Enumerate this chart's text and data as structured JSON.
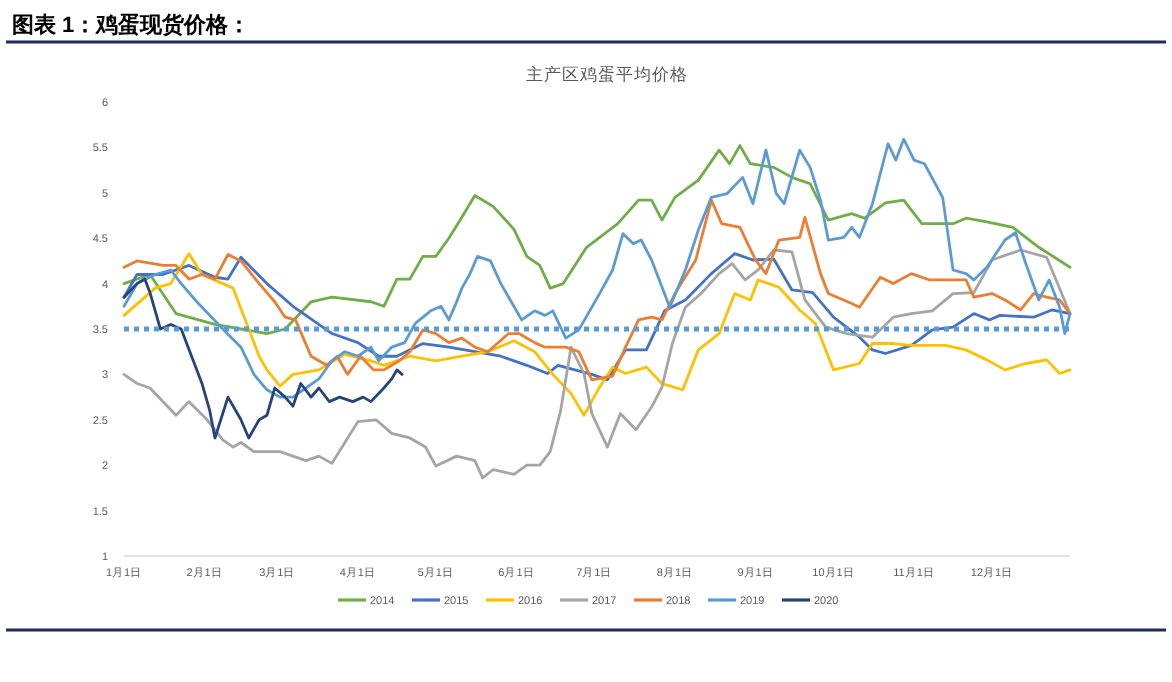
{
  "chart_data": {
    "type": "line",
    "title": "图表 1：鸡蛋现货价格：",
    "subtitle": "主产区鸡蛋平均价格",
    "xlim": [
      "--01-01",
      "--12-31"
    ],
    "xticks": [
      {
        "value": "--01-01",
        "label": "1月1日"
      },
      {
        "value": "--02-01",
        "label": "2月1日"
      },
      {
        "value": "--03-01",
        "label": "3月1日"
      },
      {
        "value": "--04-01",
        "label": "4月1日"
      },
      {
        "value": "--05-01",
        "label": "5月1日"
      },
      {
        "value": "--06-01",
        "label": "6月1日"
      },
      {
        "value": "--07-01",
        "label": "7月1日"
      },
      {
        "value": "--08-01",
        "label": "8月1日"
      },
      {
        "value": "--09-01",
        "label": "9月1日"
      },
      {
        "value": "--10-01",
        "label": "10月1日"
      },
      {
        "value": "--11-01",
        "label": "11月1日"
      },
      {
        "value": "--12-01",
        "label": "12月1日"
      }
    ],
    "ylim": [
      1,
      6
    ],
    "yticks": [
      1,
      1.5,
      2,
      2.5,
      3,
      3.5,
      4,
      4.5,
      5,
      5.5,
      6
    ],
    "grid": false,
    "legend": "bottom",
    "marker": "none",
    "line_style": "solid",
    "ref_lines": [
      {
        "axis": "y",
        "value": 3.5,
        "color": "#5b9bd5",
        "line_style": "dotted"
      }
    ],
    "series": [
      {
        "name": "2014",
        "color": "#70ad47",
        "x": [
          "--01-01",
          "--01-11",
          "--01-21",
          "--02-05",
          "--02-15",
          "--02-25",
          "--03-04",
          "--03-14",
          "--03-22",
          "--04-06",
          "--04-11",
          "--04-16",
          "--04-21",
          "--04-26",
          "--05-01",
          "--05-06",
          "--05-11",
          "--05-16",
          "--05-23",
          "--05-31",
          "--06-05",
          "--06-10",
          "--06-14",
          "--06-19",
          "--06-28",
          "--07-10",
          "--07-18",
          "--07-23",
          "--07-27",
          "--08-01",
          "--08-10",
          "--08-18",
          "--08-22",
          "--08-26",
          "--08-30",
          "--09-08",
          "--09-15",
          "--09-22",
          "--09-29",
          "--10-08",
          "--10-13",
          "--10-21",
          "--10-28",
          "--11-04",
          "--11-16",
          "--11-21",
          "--11-29",
          "--12-09",
          "--12-19",
          "--12-31"
        ],
        "values": [
          4.0,
          4.1,
          3.67,
          3.55,
          3.5,
          3.45,
          3.5,
          3.8,
          3.85,
          3.8,
          3.75,
          4.05,
          4.05,
          4.3,
          4.3,
          4.5,
          4.73,
          4.97,
          4.85,
          4.6,
          4.3,
          4.2,
          3.95,
          4.0,
          4.4,
          4.66,
          4.92,
          4.92,
          4.7,
          4.95,
          5.14,
          5.47,
          5.32,
          5.52,
          5.32,
          5.28,
          5.17,
          5.1,
          4.7,
          4.77,
          4.72,
          4.89,
          4.92,
          4.66,
          4.66,
          4.72,
          4.68,
          4.62,
          4.4,
          4.18
        ]
      },
      {
        "name": "2015",
        "color": "#4472c4",
        "x": [
          "--01-01",
          "--01-06",
          "--01-16",
          "--01-26",
          "--02-05",
          "--02-10",
          "--02-15",
          "--02-25",
          "--03-07",
          "--03-12",
          "--03-22",
          "--04-01",
          "--04-09",
          "--04-16",
          "--04-26",
          "--05-06",
          "--05-16",
          "--05-26",
          "--06-05",
          "--06-13",
          "--06-17",
          "--06-30",
          "--07-06",
          "--07-13",
          "--07-21",
          "--07-28",
          "--08-05",
          "--08-15",
          "--08-24",
          "--08-31",
          "--09-08",
          "--09-15",
          "--09-23",
          "--10-01",
          "--10-11",
          "--10-16",
          "--10-21",
          "--10-31",
          "--11-08",
          "--11-16",
          "--11-24",
          "--11-30",
          "--12-04",
          "--12-17",
          "--12-24",
          "--12-31"
        ],
        "values": [
          3.85,
          4.1,
          4.1,
          4.2,
          4.07,
          4.05,
          4.29,
          4.0,
          3.75,
          3.65,
          3.45,
          3.35,
          3.2,
          3.2,
          3.34,
          3.3,
          3.25,
          3.2,
          3.1,
          3.01,
          3.1,
          3.0,
          2.94,
          3.27,
          3.27,
          3.7,
          3.82,
          4.11,
          4.33,
          4.26,
          4.27,
          3.93,
          3.9,
          3.63,
          3.41,
          3.27,
          3.23,
          3.32,
          3.49,
          3.52,
          3.67,
          3.6,
          3.65,
          3.63,
          3.71,
          3.67
        ]
      },
      {
        "name": "2016",
        "color": "#ffc000",
        "x": [
          "--01-01",
          "--01-13",
          "--01-19",
          "--01-26",
          "--01-31",
          "--02-08",
          "--02-12",
          "--02-18",
          "--02-22",
          "--02-25",
          "--03-02",
          "--03-07",
          "--03-17",
          "--03-27",
          "--04-06",
          "--04-11",
          "--04-21",
          "--05-01",
          "--05-11",
          "--05-21",
          "--05-31",
          "--06-08",
          "--06-15",
          "--06-22",
          "--06-27",
          "--07-03",
          "--07-08",
          "--07-13",
          "--07-21",
          "--07-27",
          "--08-04",
          "--08-10",
          "--08-18",
          "--08-24",
          "--08-30",
          "--09-02",
          "--09-10",
          "--09-18",
          "--09-24",
          "--10-01",
          "--10-11",
          "--10-16",
          "--10-24",
          "--10-31",
          "--11-13",
          "--11-21",
          "--11-29",
          "--12-06",
          "--12-14",
          "--12-22",
          "--12-27",
          "--12-31"
        ],
        "values": [
          3.65,
          3.95,
          4.0,
          4.33,
          4.1,
          4.0,
          3.95,
          3.5,
          3.2,
          3.05,
          2.87,
          3.0,
          3.05,
          3.22,
          3.15,
          3.1,
          3.2,
          3.15,
          3.2,
          3.25,
          3.37,
          3.25,
          3.0,
          2.79,
          2.55,
          2.86,
          3.08,
          3.01,
          3.08,
          2.9,
          2.83,
          3.27,
          3.45,
          3.89,
          3.82,
          4.04,
          3.96,
          3.71,
          3.56,
          3.05,
          3.12,
          3.34,
          3.34,
          3.32,
          3.32,
          3.27,
          3.16,
          3.05,
          3.12,
          3.16,
          3.01,
          3.05
        ]
      },
      {
        "name": "2017",
        "color": "#a5a5a5",
        "x": [
          "--01-01",
          "--01-06",
          "--01-11",
          "--01-21",
          "--01-26",
          "--02-02",
          "--02-08",
          "--02-12",
          "--02-15",
          "--02-20",
          "--03-02",
          "--03-07",
          "--03-12",
          "--03-17",
          "--03-22",
          "--03-27",
          "--04-01",
          "--04-08",
          "--04-14",
          "--04-21",
          "--04-27",
          "--05-01",
          "--05-09",
          "--05-16",
          "--05-19",
          "--05-23",
          "--05-31",
          "--06-05",
          "--06-10",
          "--06-14",
          "--06-18",
          "--06-22",
          "--06-27",
          "--06-30",
          "--07-06",
          "--07-11",
          "--07-17",
          "--07-23",
          "--07-27",
          "--07-31",
          "--08-05",
          "--08-11",
          "--08-18",
          "--08-23",
          "--08-28",
          "--09-02",
          "--09-08",
          "--09-15",
          "--09-20",
          "--09-28",
          "--10-06",
          "--10-16",
          "--10-24",
          "--10-31",
          "--11-08",
          "--11-16",
          "--11-24",
          "--12-01",
          "--12-12",
          "--12-22",
          "--12-31"
        ],
        "values": [
          3.0,
          2.9,
          2.85,
          2.55,
          2.7,
          2.5,
          2.28,
          2.2,
          2.25,
          2.15,
          2.15,
          2.1,
          2.05,
          2.1,
          2.02,
          2.25,
          2.48,
          2.5,
          2.35,
          2.3,
          2.2,
          1.99,
          2.1,
          2.05,
          1.86,
          1.95,
          1.9,
          2.0,
          2.0,
          2.15,
          2.6,
          3.3,
          3.01,
          2.57,
          2.2,
          2.57,
          2.39,
          2.64,
          2.86,
          3.34,
          3.74,
          3.89,
          4.11,
          4.22,
          4.04,
          4.15,
          4.37,
          4.35,
          3.82,
          3.52,
          3.45,
          3.41,
          3.63,
          3.67,
          3.7,
          3.89,
          3.9,
          4.26,
          4.37,
          4.29,
          3.67
        ]
      },
      {
        "name": "2018",
        "color": "#ed7d31",
        "x": [
          "--01-01",
          "--01-06",
          "--01-16",
          "--01-21",
          "--01-26",
          "--01-31",
          "--02-05",
          "--02-10",
          "--02-15",
          "--02-22",
          "--02-28",
          "--03-04",
          "--03-08",
          "--03-14",
          "--03-20",
          "--03-24",
          "--03-28",
          "--04-02",
          "--04-07",
          "--04-11",
          "--04-17",
          "--04-21",
          "--04-26",
          "--05-01",
          "--05-06",
          "--05-11",
          "--05-16",
          "--05-21",
          "--05-29",
          "--06-02",
          "--06-08",
          "--06-12",
          "--06-20",
          "--06-25",
          "--06-30",
          "--07-08",
          "--07-13",
          "--07-18",
          "--07-23",
          "--07-27",
          "--08-01",
          "--08-09",
          "--08-15",
          "--08-19",
          "--08-26",
          "--09-01",
          "--09-05",
          "--09-10",
          "--09-18",
          "--09-20",
          "--09-26",
          "--09-29",
          "--10-08",
          "--10-11",
          "--10-19",
          "--10-24",
          "--10-31",
          "--11-07",
          "--11-21",
          "--11-24",
          "--12-01",
          "--12-06",
          "--12-12",
          "--12-17",
          "--12-22",
          "--12-27",
          "--12-31"
        ],
        "values": [
          4.18,
          4.25,
          4.2,
          4.2,
          4.05,
          4.1,
          4.05,
          4.32,
          4.25,
          4.0,
          3.8,
          3.63,
          3.6,
          3.2,
          3.1,
          3.2,
          3.0,
          3.2,
          3.05,
          3.05,
          3.15,
          3.25,
          3.49,
          3.45,
          3.35,
          3.4,
          3.3,
          3.25,
          3.45,
          3.45,
          3.35,
          3.3,
          3.3,
          3.25,
          2.94,
          2.98,
          3.3,
          3.6,
          3.63,
          3.6,
          3.89,
          4.26,
          4.92,
          4.66,
          4.62,
          4.26,
          4.11,
          4.48,
          4.51,
          4.73,
          4.11,
          3.89,
          3.78,
          3.74,
          4.07,
          4.0,
          4.11,
          4.04,
          4.04,
          3.85,
          3.89,
          3.82,
          3.71,
          3.89,
          3.85,
          3.82,
          3.67
        ]
      },
      {
        "name": "2019",
        "color": "#5b9bd5",
        "x": [
          "--01-01",
          "--01-06",
          "--01-13",
          "--01-19",
          "--01-23",
          "--01-29",
          "--02-08",
          "--02-15",
          "--02-20",
          "--02-25",
          "--03-02",
          "--03-07",
          "--03-12",
          "--03-17",
          "--03-22",
          "--03-27",
          "--04-01",
          "--04-06",
          "--04-09",
          "--04-14",
          "--04-19",
          "--04-23",
          "--04-29",
          "--05-03",
          "--05-06",
          "--05-09",
          "--05-11",
          "--05-14",
          "--05-17",
          "--05-22",
          "--05-26",
          "--05-31",
          "--06-03",
          "--06-08",
          "--06-12",
          "--06-15",
          "--06-20",
          "--06-25",
          "--07-03",
          "--07-08",
          "--07-12",
          "--07-16",
          "--07-19",
          "--07-23",
          "--07-30",
          "--08-05",
          "--08-10",
          "--08-15",
          "--08-21",
          "--08-27",
          "--08-31",
          "--09-05",
          "--09-09",
          "--09-12",
          "--09-18",
          "--09-22",
          "--09-26",
          "--09-29",
          "--10-05",
          "--10-08",
          "--10-11",
          "--10-16",
          "--10-22",
          "--10-25",
          "--10-28",
          "--11-01",
          "--11-05",
          "--11-12",
          "--11-16",
          "--11-21",
          "--11-24",
          "--11-29",
          "--12-06",
          "--12-10",
          "--12-14",
          "--12-19",
          "--12-23",
          "--12-27",
          "--12-29",
          "--12-31"
        ],
        "values": [
          3.75,
          4.0,
          4.1,
          4.15,
          4.0,
          3.8,
          3.5,
          3.3,
          3.0,
          2.83,
          2.75,
          2.75,
          2.85,
          2.95,
          3.15,
          3.25,
          3.2,
          3.3,
          3.15,
          3.3,
          3.35,
          3.56,
          3.7,
          3.75,
          3.6,
          3.8,
          3.95,
          4.1,
          4.3,
          4.25,
          4.0,
          3.75,
          3.6,
          3.7,
          3.65,
          3.7,
          3.4,
          3.49,
          3.89,
          4.15,
          4.55,
          4.44,
          4.48,
          4.26,
          3.74,
          4.15,
          4.59,
          4.95,
          4.99,
          5.17,
          4.88,
          5.47,
          4.99,
          4.88,
          5.47,
          5.28,
          4.92,
          4.48,
          4.51,
          4.62,
          4.51,
          4.88,
          5.54,
          5.36,
          5.59,
          5.36,
          5.32,
          4.95,
          4.15,
          4.11,
          4.04,
          4.18,
          4.48,
          4.56,
          4.22,
          3.82,
          4.04,
          3.74,
          3.45,
          3.67
        ]
      },
      {
        "name": "2020",
        "color": "#264478",
        "x": [
          "--01-01",
          "--01-06",
          "--01-09",
          "--01-11",
          "--01-15",
          "--01-19",
          "--01-23",
          "--01-27",
          "--01-31",
          "--02-03",
          "--02-05",
          "--02-10",
          "--02-15",
          "--02-18",
          "--02-22",
          "--02-25",
          "--02-28",
          "--03-04",
          "--03-07",
          "--03-10",
          "--03-14",
          "--03-17",
          "--03-21",
          "--03-25",
          "--03-30",
          "--04-03",
          "--04-06",
          "--04-11",
          "--04-14",
          "--04-16",
          "--04-18"
        ],
        "values": [
          3.85,
          4.0,
          4.05,
          3.9,
          3.5,
          3.55,
          3.5,
          3.2,
          2.9,
          2.6,
          2.3,
          2.75,
          2.5,
          2.3,
          2.5,
          2.55,
          2.85,
          2.75,
          2.65,
          2.9,
          2.75,
          2.85,
          2.7,
          2.75,
          2.7,
          2.75,
          2.7,
          2.85,
          2.95,
          3.05,
          3.0
        ]
      }
    ]
  }
}
